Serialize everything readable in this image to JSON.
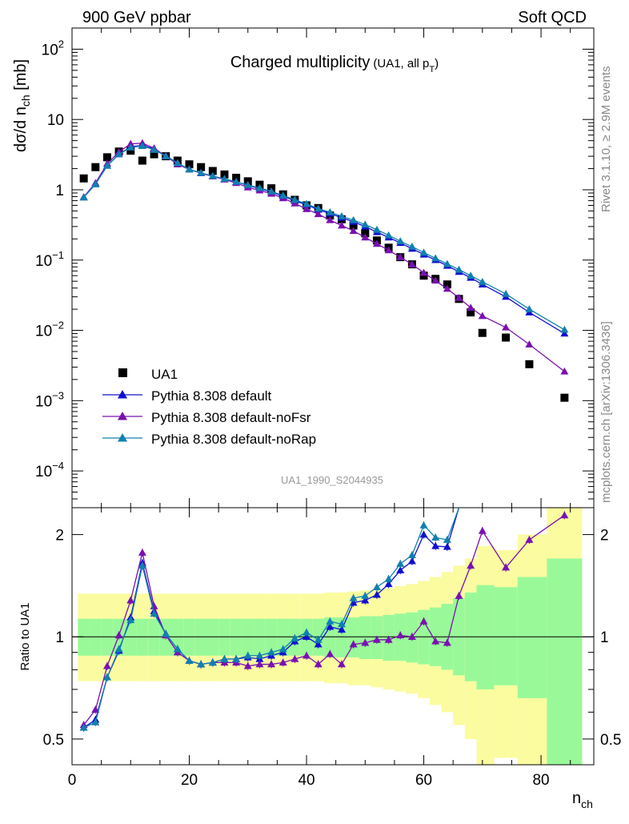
{
  "header": {
    "left": "900 GeV ppbar",
    "right": "Soft QCD"
  },
  "side_labels": {
    "rivet": "Rivet 3.1.10, ≥ 2.9M events",
    "mcplots": "mcplots.cern.ch [arXiv:1306.3436]"
  },
  "colors": {
    "data": "#000000",
    "default": "#1010d0",
    "noFsr": "#7a10b0",
    "noRap": "#1080b0",
    "band_inner": "#99f999",
    "band_outer": "#fbfba0"
  },
  "chart_data": [
    {
      "type": "scatter",
      "title": "Charged multiplicity",
      "title_sub": "(UA1, all p",
      "title_sub_index": "T",
      "title_sub_close": ")",
      "ylabel": "dσ/d n",
      "ylabel_sub": "ch",
      "ylabel_unit": " [mb]",
      "log_y": true,
      "xlim": [
        0,
        89
      ],
      "ylim": [
        3e-05,
        200
      ],
      "x_ticks": [
        0,
        20,
        40,
        60,
        80
      ],
      "y_ticks": [
        {
          "base": "10",
          "exp": "2",
          "value": 100
        },
        {
          "base": "10",
          "exp": "",
          "value": 10
        },
        {
          "base": "1",
          "exp": "",
          "value": 1
        },
        {
          "base": "10",
          "exp": "−1",
          "value": 0.1
        },
        {
          "base": "10",
          "exp": "−2",
          "value": 0.01
        },
        {
          "base": "10",
          "exp": "−3",
          "value": 0.001
        },
        {
          "base": "10",
          "exp": "−4",
          "value": 0.0001
        }
      ],
      "watermark": "UA1_1990_S2044935",
      "legend_position": "bottom-left",
      "series": [
        {
          "name": "UA1",
          "marker": "square",
          "x": [
            2,
            4,
            6,
            8,
            10,
            12,
            14,
            16,
            18,
            20,
            22,
            24,
            26,
            28,
            30,
            32,
            34,
            36,
            38,
            40,
            42,
            44,
            46,
            48,
            50,
            52,
            54,
            56,
            58,
            60,
            62,
            64,
            66,
            68,
            70,
            74,
            78,
            84
          ],
          "y": [
            1.45,
            2.1,
            2.9,
            3.5,
            3.6,
            2.6,
            3.2,
            3.0,
            2.6,
            2.3,
            2.1,
            1.85,
            1.65,
            1.48,
            1.32,
            1.18,
            1.05,
            0.86,
            0.72,
            0.6,
            0.55,
            0.43,
            0.38,
            0.31,
            0.24,
            0.19,
            0.15,
            0.11,
            0.087,
            0.06,
            0.054,
            0.045,
            0.028,
            0.018,
            0.0092,
            0.0079,
            0.0033,
            0.0011
          ]
        },
        {
          "name": "Pythia 8.308 default",
          "marker": "triangle",
          "x": [
            2,
            4,
            6,
            8,
            10,
            12,
            14,
            16,
            18,
            20,
            22,
            24,
            26,
            28,
            30,
            32,
            34,
            36,
            38,
            40,
            42,
            44,
            46,
            48,
            50,
            52,
            54,
            56,
            58,
            60,
            62,
            64,
            66,
            68,
            70,
            74,
            78,
            84
          ],
          "y": [
            0.78,
            1.2,
            2.2,
            3.2,
            4.1,
            4.3,
            3.8,
            3.05,
            2.4,
            1.95,
            1.72,
            1.55,
            1.42,
            1.3,
            1.16,
            1.04,
            0.93,
            0.81,
            0.7,
            0.61,
            0.52,
            0.46,
            0.4,
            0.35,
            0.3,
            0.25,
            0.21,
            0.175,
            0.145,
            0.12,
            0.1,
            0.083,
            0.068,
            0.056,
            0.045,
            0.03,
            0.018,
            0.009
          ]
        },
        {
          "name": "Pythia 8.308 default-noFsr",
          "marker": "triangle",
          "x": [
            2,
            4,
            6,
            8,
            10,
            12,
            14,
            16,
            18,
            20,
            22,
            24,
            26,
            28,
            30,
            32,
            34,
            36,
            38,
            40,
            42,
            44,
            46,
            48,
            50,
            52,
            54,
            56,
            58,
            60,
            62,
            64,
            66,
            68,
            70,
            74,
            78,
            84
          ],
          "y": [
            0.79,
            1.25,
            2.35,
            3.45,
            4.5,
            4.6,
            3.9,
            3.0,
            2.3,
            1.95,
            1.74,
            1.55,
            1.4,
            1.25,
            1.08,
            0.98,
            0.88,
            0.76,
            0.64,
            0.53,
            0.45,
            0.37,
            0.31,
            0.26,
            0.21,
            0.17,
            0.138,
            0.11,
            0.087,
            0.066,
            0.051,
            0.039,
            0.029,
            0.021,
            0.016,
            0.011,
            0.0063,
            0.0026
          ]
        },
        {
          "name": "Pythia 8.308 default-noRap",
          "marker": "triangle",
          "x": [
            2,
            4,
            6,
            8,
            10,
            12,
            14,
            16,
            18,
            20,
            22,
            24,
            26,
            28,
            30,
            32,
            34,
            36,
            38,
            40,
            42,
            44,
            46,
            48,
            50,
            52,
            54,
            56,
            58,
            60,
            62,
            64,
            66,
            68,
            70,
            74,
            78,
            84
          ],
          "y": [
            0.78,
            1.2,
            2.2,
            3.2,
            4.0,
            4.2,
            3.7,
            3.0,
            2.4,
            1.95,
            1.74,
            1.57,
            1.43,
            1.3,
            1.17,
            1.06,
            0.95,
            0.83,
            0.72,
            0.63,
            0.54,
            0.48,
            0.42,
            0.37,
            0.32,
            0.27,
            0.225,
            0.185,
            0.155,
            0.128,
            0.106,
            0.088,
            0.073,
            0.06,
            0.049,
            0.033,
            0.02,
            0.0102
          ]
        }
      ]
    },
    {
      "type": "line",
      "ylabel": "Ratio to UA1",
      "xlabel": "n",
      "xlabel_sub": "ch",
      "log_y": true,
      "xlim": [
        0,
        89
      ],
      "ylim": [
        0.42,
        2.4
      ],
      "x_ticks": [
        0,
        20,
        40,
        60,
        80
      ],
      "y_ticks": [
        0.5,
        1,
        2
      ],
      "reference_line": 1,
      "bands": {
        "x_edges": [
          1,
          3,
          5,
          7,
          9,
          11,
          13,
          15,
          17,
          19,
          21,
          23,
          25,
          27,
          29,
          31,
          33,
          35,
          37,
          39,
          41,
          43,
          45,
          47,
          49,
          51,
          53,
          55,
          57,
          59,
          61,
          63,
          65,
          67,
          69,
          72,
          76,
          81,
          87
        ],
        "inner_low": [
          0.88,
          0.88,
          0.88,
          0.88,
          0.88,
          0.88,
          0.88,
          0.88,
          0.88,
          0.88,
          0.88,
          0.88,
          0.88,
          0.88,
          0.88,
          0.88,
          0.88,
          0.88,
          0.88,
          0.88,
          0.88,
          0.87,
          0.87,
          0.87,
          0.86,
          0.86,
          0.85,
          0.85,
          0.84,
          0.83,
          0.82,
          0.8,
          0.77,
          0.74,
          0.7,
          0.72,
          0.66,
          0.35
        ],
        "inner_high": [
          1.13,
          1.13,
          1.13,
          1.13,
          1.13,
          1.13,
          1.13,
          1.13,
          1.13,
          1.13,
          1.13,
          1.13,
          1.13,
          1.13,
          1.13,
          1.13,
          1.13,
          1.13,
          1.13,
          1.13,
          1.13,
          1.14,
          1.14,
          1.14,
          1.15,
          1.15,
          1.16,
          1.17,
          1.18,
          1.2,
          1.22,
          1.25,
          1.3,
          1.35,
          1.42,
          1.4,
          1.5,
          1.7
        ],
        "outer_low": [
          0.74,
          0.74,
          0.74,
          0.74,
          0.74,
          0.74,
          0.74,
          0.74,
          0.74,
          0.74,
          0.74,
          0.74,
          0.74,
          0.74,
          0.74,
          0.74,
          0.74,
          0.74,
          0.74,
          0.74,
          0.74,
          0.73,
          0.73,
          0.72,
          0.72,
          0.71,
          0.7,
          0.69,
          0.68,
          0.66,
          0.63,
          0.6,
          0.55,
          0.5,
          0.4,
          0.44,
          0.42,
          0.35
        ],
        "outer_high": [
          1.34,
          1.34,
          1.34,
          1.34,
          1.34,
          1.34,
          1.34,
          1.34,
          1.34,
          1.34,
          1.34,
          1.34,
          1.34,
          1.34,
          1.34,
          1.34,
          1.34,
          1.34,
          1.34,
          1.34,
          1.34,
          1.35,
          1.35,
          1.36,
          1.37,
          1.38,
          1.39,
          1.41,
          1.43,
          1.46,
          1.5,
          1.55,
          1.62,
          1.7,
          1.85,
          1.8,
          2.0,
          2.4
        ]
      },
      "series": [
        {
          "name": "Pythia 8.308 default",
          "x": [
            2,
            4,
            6,
            8,
            10,
            12,
            14,
            16,
            18,
            20,
            22,
            24,
            26,
            28,
            30,
            32,
            34,
            36,
            38,
            40,
            42,
            44,
            46,
            48,
            50,
            52,
            54,
            56,
            58,
            60,
            62,
            64,
            66
          ],
          "y": [
            0.54,
            0.57,
            0.76,
            0.91,
            1.14,
            1.65,
            1.19,
            1.02,
            0.92,
            0.85,
            0.83,
            0.84,
            0.86,
            0.86,
            0.87,
            0.86,
            0.88,
            0.9,
            0.97,
            1.0,
            0.95,
            1.07,
            1.05,
            1.26,
            1.28,
            1.33,
            1.43,
            1.57,
            1.67,
            2.0,
            1.85,
            1.84,
            2.4
          ]
        },
        {
          "name": "Pythia 8.308 default-noFsr",
          "x": [
            2,
            4,
            6,
            8,
            10,
            12,
            14,
            16,
            18,
            20,
            22,
            24,
            26,
            28,
            30,
            32,
            34,
            36,
            38,
            40,
            42,
            44,
            46,
            48,
            50,
            52,
            54,
            56,
            58,
            60,
            62,
            64,
            66,
            68,
            70,
            74,
            78,
            84
          ],
          "y": [
            0.55,
            0.61,
            0.82,
            1.01,
            1.28,
            1.77,
            1.23,
            1.01,
            0.9,
            0.85,
            0.83,
            0.84,
            0.84,
            0.84,
            0.82,
            0.83,
            0.83,
            0.84,
            0.86,
            0.88,
            0.83,
            0.89,
            0.83,
            0.95,
            0.96,
            0.98,
            0.98,
            1.01,
            1.0,
            1.11,
            0.97,
            0.96,
            1.32,
            1.62,
            2.05,
            1.6,
            1.93,
            2.28
          ]
        },
        {
          "name": "Pythia 8.308 default-noRap",
          "x": [
            2,
            4,
            6,
            8,
            10,
            12,
            14,
            16,
            18,
            20,
            22,
            24,
            26,
            28,
            30,
            32,
            34,
            36,
            38,
            40,
            42,
            44,
            46,
            48,
            50,
            52,
            54,
            56,
            58,
            60,
            62,
            64,
            66
          ],
          "y": [
            0.54,
            0.56,
            0.76,
            0.92,
            1.12,
            1.62,
            1.17,
            1.02,
            0.92,
            0.85,
            0.83,
            0.84,
            0.86,
            0.86,
            0.88,
            0.88,
            0.9,
            0.92,
            0.99,
            1.03,
            0.98,
            1.11,
            1.09,
            1.3,
            1.32,
            1.4,
            1.48,
            1.64,
            1.74,
            2.13,
            1.96,
            1.93,
            2.4
          ]
        }
      ]
    }
  ]
}
